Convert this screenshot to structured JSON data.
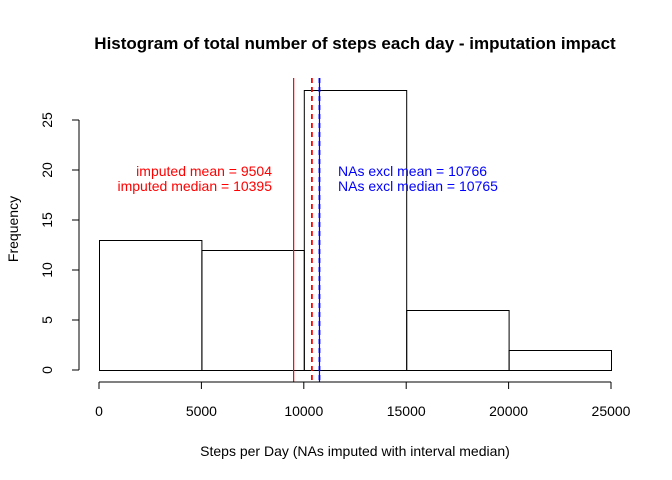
{
  "chart_data": {
    "type": "bar",
    "title": "Histogram of total number of steps each day - imputation impact",
    "xlabel": "Steps per Day (NAs imputed with interval median)",
    "ylabel": "Frequency",
    "xlim": [
      0,
      25000
    ],
    "ylim": [
      0,
      28
    ],
    "x_ticks": [
      0,
      5000,
      10000,
      15000,
      20000,
      25000
    ],
    "y_ticks": [
      0,
      5,
      10,
      15,
      20,
      25
    ],
    "grid": false,
    "bins": [
      {
        "from": 0,
        "to": 5000,
        "value": 13
      },
      {
        "from": 5000,
        "to": 10000,
        "value": 12
      },
      {
        "from": 10000,
        "to": 15000,
        "value": 28
      },
      {
        "from": 15000,
        "to": 20000,
        "value": 6
      },
      {
        "from": 20000,
        "to": 25000,
        "value": 2
      }
    ],
    "reference_lines": [
      {
        "x": 9504,
        "color": "#ff0000",
        "style": "solid"
      },
      {
        "x": 10395,
        "color": "#ff0000",
        "style": "dashed"
      },
      {
        "x": 10766,
        "color": "#0000ff",
        "style": "solid"
      },
      {
        "x": 10765,
        "color": "#0000ff",
        "style": "dashed"
      }
    ],
    "annotations": [
      {
        "text": "imputed mean =  9504",
        "color": "#ff0000"
      },
      {
        "text": "imputed median =  10395",
        "color": "#ff0000"
      },
      {
        "text": "NAs excl mean =  10766",
        "color": "#0000ff"
      },
      {
        "text": "NAs excl median =  10765",
        "color": "#0000ff"
      }
    ]
  }
}
